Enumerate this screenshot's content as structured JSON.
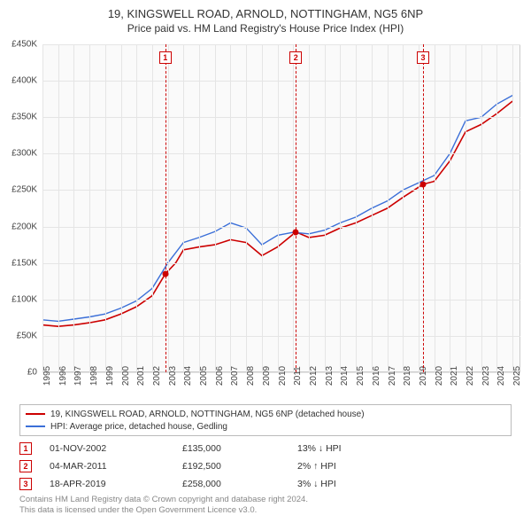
{
  "title": {
    "main": "19, KINGSWELL ROAD, ARNOLD, NOTTINGHAM, NG5 6NP",
    "sub": "Price paid vs. HM Land Registry's House Price Index (HPI)"
  },
  "chart": {
    "type": "line",
    "background_color": "#fafafa",
    "grid_color": "#e5e5e5",
    "border_color": "#cccccc",
    "xlim": [
      1995,
      2025.5
    ],
    "ylim": [
      0,
      450000
    ],
    "ytick_step": 50000,
    "ytick_prefix": "£",
    "ytick_suffix": "K",
    "ytick_divisor": 1000,
    "xticks": [
      1995,
      1996,
      1997,
      1998,
      1999,
      2000,
      2001,
      2002,
      2003,
      2004,
      2005,
      2006,
      2007,
      2008,
      2009,
      2010,
      2011,
      2012,
      2013,
      2014,
      2015,
      2016,
      2017,
      2018,
      2019,
      2020,
      2021,
      2022,
      2023,
      2024,
      2025
    ],
    "series": [
      {
        "key": "red",
        "label": "19, KINGSWELL ROAD, ARNOLD, NOTTINGHAM, NG5 6NP (detached house)",
        "color": "#cc0000",
        "line_width": 1.6,
        "data": [
          [
            1995,
            65000
          ],
          [
            1996,
            63000
          ],
          [
            1997,
            65000
          ],
          [
            1998,
            68000
          ],
          [
            1999,
            72000
          ],
          [
            2000,
            80000
          ],
          [
            2001,
            90000
          ],
          [
            2002,
            105000
          ],
          [
            2002.84,
            135000
          ],
          [
            2003.5,
            150000
          ],
          [
            2004,
            168000
          ],
          [
            2005,
            172000
          ],
          [
            2006,
            175000
          ],
          [
            2007,
            182000
          ],
          [
            2008,
            178000
          ],
          [
            2009,
            160000
          ],
          [
            2010,
            172000
          ],
          [
            2011.17,
            192500
          ],
          [
            2012,
            185000
          ],
          [
            2013,
            188000
          ],
          [
            2014,
            198000
          ],
          [
            2015,
            205000
          ],
          [
            2016,
            215000
          ],
          [
            2017,
            225000
          ],
          [
            2018,
            240000
          ],
          [
            2019.29,
            258000
          ],
          [
            2020,
            262000
          ],
          [
            2021,
            290000
          ],
          [
            2022,
            330000
          ],
          [
            2023,
            340000
          ],
          [
            2024,
            355000
          ],
          [
            2025,
            372000
          ]
        ]
      },
      {
        "key": "blue",
        "label": "HPI: Average price, detached house, Gedling",
        "color": "#3b6fd8",
        "line_width": 1.4,
        "data": [
          [
            1995,
            72000
          ],
          [
            1996,
            70000
          ],
          [
            1997,
            73000
          ],
          [
            1998,
            76000
          ],
          [
            1999,
            80000
          ],
          [
            2000,
            88000
          ],
          [
            2001,
            98000
          ],
          [
            2002,
            115000
          ],
          [
            2003,
            150000
          ],
          [
            2004,
            178000
          ],
          [
            2005,
            185000
          ],
          [
            2006,
            193000
          ],
          [
            2007,
            205000
          ],
          [
            2008,
            198000
          ],
          [
            2009,
            175000
          ],
          [
            2010,
            188000
          ],
          [
            2011,
            192000
          ],
          [
            2012,
            190000
          ],
          [
            2013,
            195000
          ],
          [
            2014,
            205000
          ],
          [
            2015,
            213000
          ],
          [
            2016,
            225000
          ],
          [
            2017,
            235000
          ],
          [
            2018,
            250000
          ],
          [
            2019,
            260000
          ],
          [
            2020,
            270000
          ],
          [
            2021,
            300000
          ],
          [
            2022,
            345000
          ],
          [
            2023,
            350000
          ],
          [
            2024,
            368000
          ],
          [
            2025,
            380000
          ]
        ]
      }
    ],
    "markers": [
      {
        "n": "1",
        "x": 2002.84,
        "y": 135000
      },
      {
        "n": "2",
        "x": 2011.17,
        "y": 192500
      },
      {
        "n": "3",
        "x": 2019.29,
        "y": 258000
      }
    ],
    "marker_color": "#cc0000"
  },
  "legend": {
    "items": [
      {
        "color": "#cc0000",
        "label": "19, KINGSWELL ROAD, ARNOLD, NOTTINGHAM, NG5 6NP (detached house)"
      },
      {
        "color": "#3b6fd8",
        "label": "HPI: Average price, detached house, Gedling"
      }
    ]
  },
  "events": [
    {
      "n": "1",
      "date": "01-NOV-2002",
      "price": "£135,000",
      "delta": "13% ↓ HPI"
    },
    {
      "n": "2",
      "date": "04-MAR-2011",
      "price": "£192,500",
      "delta": "2% ↑ HPI"
    },
    {
      "n": "3",
      "date": "18-APR-2019",
      "price": "£258,000",
      "delta": "3% ↓ HPI"
    }
  ],
  "footer": {
    "line1": "Contains HM Land Registry data © Crown copyright and database right 2024.",
    "line2": "This data is licensed under the Open Government Licence v3.0."
  }
}
